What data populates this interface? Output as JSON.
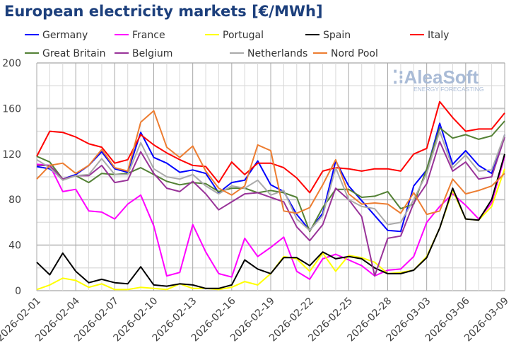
{
  "chart_data": {
    "type": "line",
    "title": "European electricity markets [€/MWh]",
    "ylim": [
      0,
      200
    ],
    "yticks": [
      0,
      40,
      80,
      120,
      160,
      200
    ],
    "grid": true,
    "legend_placement": "top",
    "watermark": "AleaSoft ENERGY FORECASTING",
    "x": [
      "2026-02-01",
      "2026-02-02",
      "2026-02-03",
      "2026-02-04",
      "2026-02-05",
      "2026-02-06",
      "2026-02-07",
      "2026-02-08",
      "2026-02-09",
      "2026-02-10",
      "2026-02-11",
      "2026-02-12",
      "2026-02-13",
      "2026-02-14",
      "2026-02-15",
      "2026-02-16",
      "2026-02-17",
      "2026-02-18",
      "2026-02-19",
      "2026-02-20",
      "2026-02-21",
      "2026-02-22",
      "2026-02-23",
      "2026-02-24",
      "2026-02-25",
      "2026-02-26",
      "2026-02-27",
      "2026-02-28",
      "2026-03-01",
      "2026-03-02",
      "2026-03-03",
      "2026-03-04",
      "2026-03-05",
      "2026-03-06",
      "2026-03-07",
      "2026-03-08",
      "2026-03-09"
    ],
    "xtick_labels": [
      "2026-02-01",
      "2026-02-04",
      "2026-02-07",
      "2026-02-10",
      "2026-02-13",
      "2026-02-16",
      "2026-02-19",
      "2026-02-22",
      "2026-02-25",
      "2026-02-28",
      "2026-03-03",
      "2026-03-06",
      "2026-03-09"
    ],
    "series": [
      {
        "name": "Germany",
        "color": "#0000ff",
        "values": [
          109,
          107,
          98,
          102,
          110,
          122,
          107,
          104,
          139,
          117,
          112,
          104,
          106,
          103,
          86,
          95,
          97,
          114,
          93,
          87,
          67,
          53,
          68,
          114,
          92,
          79,
          66,
          53,
          52,
          92,
          106,
          147,
          111,
          123,
          110,
          103,
          137
        ]
      },
      {
        "name": "France",
        "color": "#ff00ff",
        "values": [
          111,
          110,
          87,
          89,
          70,
          69,
          63,
          76,
          84,
          57,
          13,
          16,
          58,
          34,
          15,
          12,
          46,
          30,
          38,
          47,
          17,
          10,
          28,
          32,
          27,
          22,
          13,
          18,
          19,
          30,
          60,
          74,
          85,
          75,
          63,
          77,
          118
        ]
      },
      {
        "name": "Portugal",
        "color": "#ffff00",
        "values": [
          1,
          5,
          11,
          9,
          3,
          6,
          1,
          1,
          3,
          2,
          1,
          6,
          2,
          2,
          1,
          3,
          8,
          5,
          15,
          30,
          28,
          17,
          33,
          17,
          31,
          29,
          25,
          15,
          16,
          18,
          30,
          55,
          88,
          63,
          62,
          74,
          107
        ]
      },
      {
        "name": "Spain",
        "color": "#000000",
        "values": [
          25,
          14,
          33,
          17,
          7,
          10,
          7,
          6,
          21,
          5,
          4,
          6,
          5,
          2,
          2,
          5,
          27,
          19,
          15,
          29,
          29,
          22,
          34,
          28,
          30,
          28,
          20,
          15,
          15,
          18,
          29,
          55,
          90,
          63,
          62,
          80,
          120
        ]
      },
      {
        "name": "Italy",
        "color": "#ff0000",
        "values": [
          118,
          140,
          139,
          135,
          129,
          126,
          112,
          115,
          137,
          128,
          121,
          115,
          110,
          109,
          95,
          113,
          102,
          112,
          112,
          108,
          99,
          86,
          105,
          108,
          107,
          105,
          107,
          107,
          105,
          120,
          125,
          166,
          152,
          140,
          142,
          142,
          156
        ]
      },
      {
        "name": "Great Britain",
        "color": "#538135",
        "values": [
          118,
          113,
          98,
          101,
          95,
          103,
          102,
          103,
          108,
          102,
          96,
          93,
          95,
          94,
          87,
          90,
          90,
          86,
          88,
          86,
          82,
          52,
          73,
          89,
          89,
          82,
          83,
          87,
          72,
          76,
          107,
          143,
          134,
          137,
          133,
          136,
          149
        ]
      },
      {
        "name": "Belgium",
        "color": "#993399",
        "values": [
          110,
          110,
          98,
          101,
          101,
          110,
          95,
          97,
          122,
          103,
          90,
          87,
          96,
          85,
          71,
          78,
          85,
          86,
          82,
          78,
          56,
          44,
          58,
          90,
          80,
          65,
          13,
          46,
          48,
          77,
          94,
          131,
          105,
          113,
          98,
          100,
          135
        ]
      },
      {
        "name": "Netherlands",
        "color": "#aaaaaa",
        "values": [
          115,
          108,
          97,
          101,
          102,
          116,
          102,
          102,
          130,
          107,
          100,
          98,
          102,
          92,
          85,
          92,
          90,
          97,
          84,
          88,
          63,
          53,
          66,
          108,
          80,
          74,
          72,
          58,
          60,
          80,
          103,
          140,
          108,
          119,
          105,
          106,
          137
        ]
      },
      {
        "name": "Nord Pool",
        "color": "#ed7d31",
        "values": [
          98,
          110,
          112,
          103,
          110,
          124,
          108,
          105,
          148,
          158,
          126,
          117,
          127,
          105,
          90,
          84,
          92,
          128,
          123,
          70,
          68,
          73,
          93,
          115,
          85,
          76,
          77,
          76,
          68,
          86,
          67,
          70,
          98,
          85,
          88,
          92,
          103
        ]
      }
    ]
  }
}
